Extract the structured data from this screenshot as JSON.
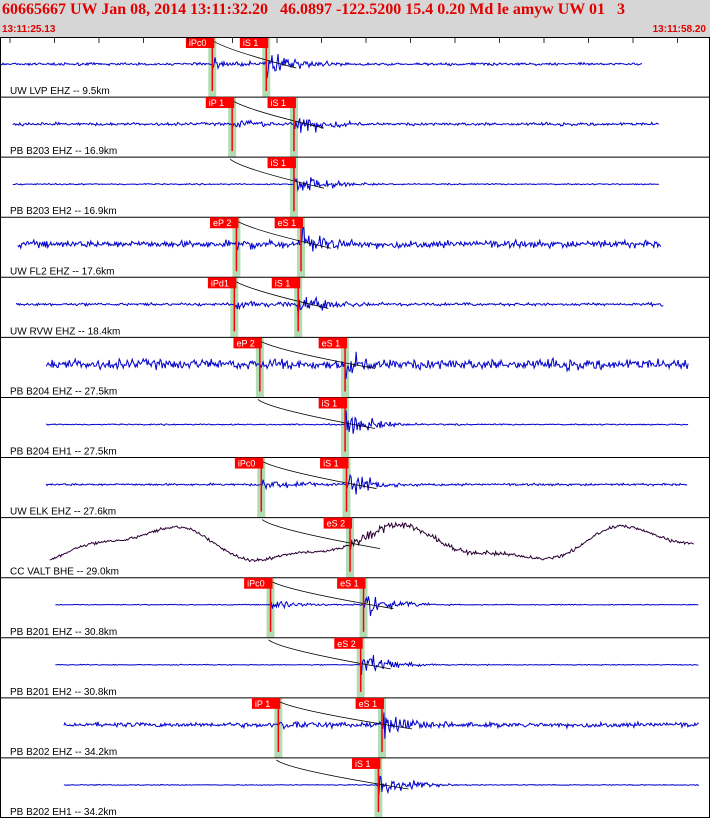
{
  "header": {
    "title": "60665667 UW Jan 08, 2014 13:11:32.20   46.0897 -122.5200 15.4 0.20 Md le amyw UW 01   3",
    "start_time": "13:11:25.13",
    "end_time": "13:11:58.20"
  },
  "colors": {
    "header_bg": "#d6d6d6",
    "header_text": "#e00000",
    "trace": "#0000cc",
    "trace_bhe": "#2a0033",
    "pick_label_bg": "#ff0000",
    "pick_label_text": "#ffffff",
    "window_shade": "#b4dcb4",
    "label_text": "#000000",
    "grid": "#000000"
  },
  "traces": [
    {
      "label": "UW LVP EHZ -- 9.5km",
      "picks": [
        "iPc0",
        "iS 1"
      ],
      "p": 0.299,
      "s": 0.375,
      "start": 0.0,
      "end": 0.905,
      "noise": 0.12,
      "amp": 1.0,
      "slow": 0
    },
    {
      "label": "PB B203 EHZ -- 16.9km",
      "picks": [
        "iP 1",
        "iS 1"
      ],
      "p": 0.327,
      "s": 0.414,
      "start": 0.018,
      "end": 0.928,
      "noise": 0.13,
      "amp": 1.0,
      "slow": 0
    },
    {
      "label": "PB B203 EH2 -- 16.9km",
      "picks": [
        "",
        "iS 1"
      ],
      "p": 0.327,
      "s": 0.414,
      "start": 0.018,
      "end": 0.928,
      "noise": 0.06,
      "amp": 0.85,
      "slow": 0
    },
    {
      "label": "UW FL2 EHZ -- 17.6km",
      "picks": [
        "eP 2",
        "eS 1"
      ],
      "p": 0.333,
      "s": 0.424,
      "start": 0.025,
      "end": 0.932,
      "noise": 0.32,
      "amp": 1.0,
      "slow": 0
    },
    {
      "label": "UW RVW EHZ -- 18.4km",
      "picks": [
        "iPd1",
        "iS 1"
      ],
      "p": 0.33,
      "s": 0.42,
      "start": 0.023,
      "end": 0.935,
      "noise": 0.13,
      "amp": 1.0,
      "slow": 0
    },
    {
      "label": "PB B204 EHZ -- 27.5km",
      "picks": [
        "eP 2",
        "eS 1"
      ],
      "p": 0.366,
      "s": 0.486,
      "start": 0.065,
      "end": 0.97,
      "noise": 0.45,
      "amp": 1.0,
      "slow": 0
    },
    {
      "label": "PB B204 EH1 -- 27.5km",
      "picks": [
        "",
        "iS 1"
      ],
      "p": 0.366,
      "s": 0.486,
      "start": 0.065,
      "end": 0.97,
      "noise": 0.06,
      "amp": 0.9,
      "slow": 0
    },
    {
      "label": "UW ELK EHZ -- 27.6km",
      "picks": [
        "iPc0",
        "iS 1"
      ],
      "p": 0.368,
      "s": 0.488,
      "start": 0.065,
      "end": 0.968,
      "noise": 0.1,
      "amp": 1.0,
      "slow": 0
    },
    {
      "label": "CC VALT BHE -- 29.0km",
      "picks": [
        "",
        "eS 2"
      ],
      "p": 0.372,
      "s": 0.493,
      "start": 0.07,
      "end": 0.978,
      "noise": 0.1,
      "amp": 0.6,
      "slow": 1
    },
    {
      "label": "PB B201 EHZ -- 30.8km",
      "picks": [
        "iPc0",
        "eS 1"
      ],
      "p": 0.381,
      "s": 0.512,
      "start": 0.078,
      "end": 0.985,
      "noise": 0.04,
      "amp": 0.9,
      "slow": 0
    },
    {
      "label": "PB B201 EH2 -- 30.8km",
      "picks": [
        "",
        "eS 2"
      ],
      "p": 0.381,
      "s": 0.508,
      "start": 0.078,
      "end": 0.985,
      "noise": 0.04,
      "amp": 0.9,
      "slow": 0
    },
    {
      "label": "PB B202 EHZ -- 34.2km",
      "picks": [
        "iP 1",
        "eS 1"
      ],
      "p": 0.392,
      "s": 0.538,
      "start": 0.09,
      "end": 0.985,
      "noise": 0.22,
      "amp": 1.0,
      "slow": 0
    },
    {
      "label": "PB B202 EH1 -- 34.2km",
      "picks": [
        "",
        "iS 1"
      ],
      "p": 0.392,
      "s": 0.533,
      "start": 0.09,
      "end": 0.985,
      "noise": 0.04,
      "amp": 0.9,
      "slow": 0
    }
  ]
}
